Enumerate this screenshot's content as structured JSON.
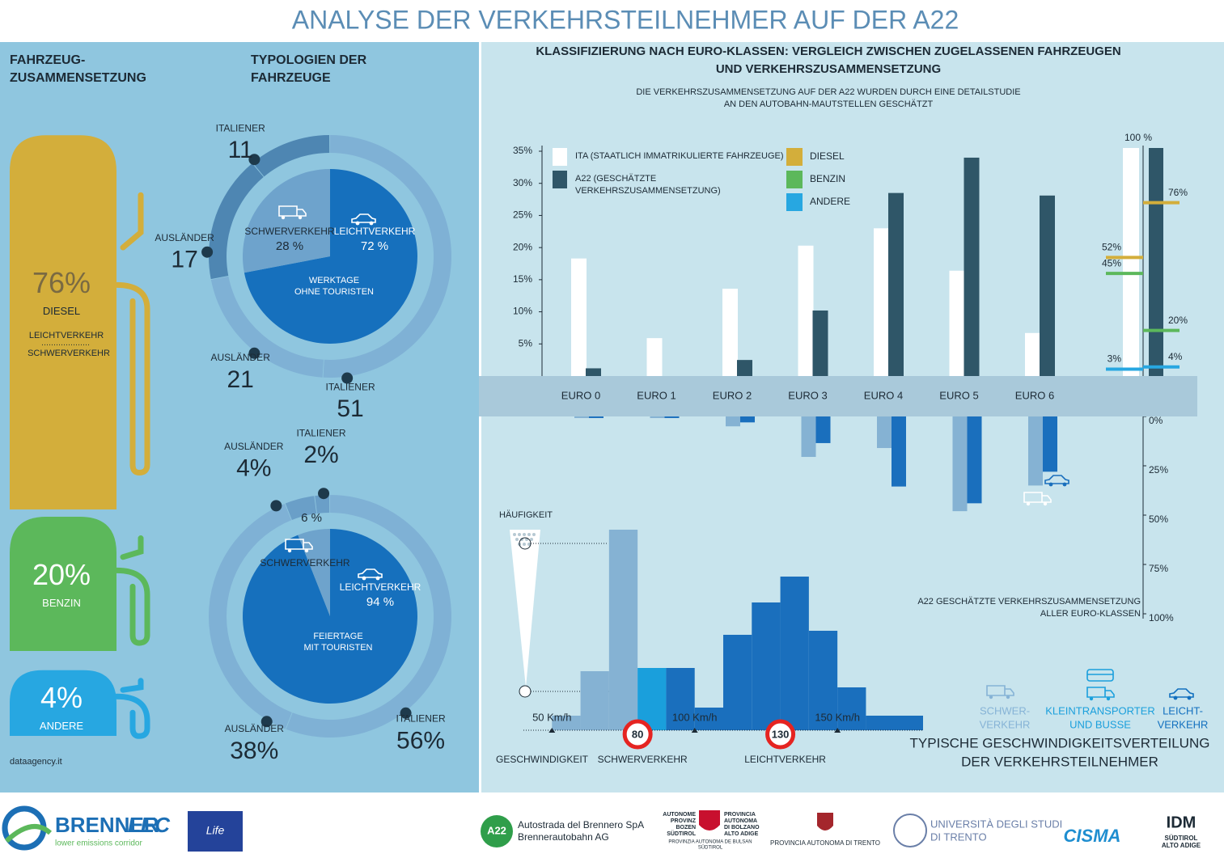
{
  "header": {
    "title": "ANALYSE DER VERKEHRSTEILNEHMER AUF DER A22"
  },
  "chart_data": [
    {
      "type": "tank",
      "title": [
        "FAHRZEUG-",
        "ZUSAMMENSETZUNG"
      ],
      "categories": [
        "DIESEL",
        "BENZIN",
        "ANDERE"
      ],
      "values": [
        76,
        20,
        4
      ],
      "value_labels": [
        "76%",
        "20%",
        "4%"
      ],
      "colors": [
        "#d3ae3b",
        "#5cb85b",
        "#27a7e1"
      ],
      "label_colors": [
        "#7a6a42",
        "#ffffff",
        "#ffffff"
      ],
      "sublabels": [
        "LEICHTVERKEHR",
        "SCHWERVERKEHR"
      ]
    },
    {
      "type": "donut",
      "title": [
        "TYPOLOGIEN DER",
        "FAHRZEUGE"
      ],
      "center_label": [
        "WERKTAGE",
        "OHNE TOURISTEN"
      ],
      "categories": [
        "LEICHTVERKEHR",
        "SCHWERVERKEHR"
      ],
      "values": [
        72,
        28
      ],
      "value_labels": [
        "72 %",
        "28 %"
      ],
      "colors": [
        "#1670bd",
        "#6ea3cc"
      ],
      "outer": {
        "categories": [
          "ITALIENER",
          "AUSLÄNDER",
          "AUSLÄNDER",
          "ITALIENER"
        ],
        "values": [
          51,
          21,
          17,
          11
        ],
        "colors": [
          "#7fb1d5",
          "#7fb1d5",
          "#4e86b2",
          "#4e86b2"
        ]
      }
    },
    {
      "type": "donut",
      "center_label": [
        "FEIERTAGE",
        "MIT TOURISTEN"
      ],
      "categories": [
        "LEICHTVERKEHR",
        "SCHWERVERKEHR"
      ],
      "values": [
        94,
        6
      ],
      "value_labels": [
        "94 %",
        "6 %"
      ],
      "colors": [
        "#1670bd",
        "#6ea3cc"
      ],
      "outer": {
        "categories": [
          "ITALIENER",
          "AUSLÄNDER",
          "AUSLÄNDER",
          "ITALIENER"
        ],
        "values": [
          56,
          38,
          4,
          2
        ],
        "value_labels": [
          "56%",
          "38%",
          "4%",
          "2%"
        ],
        "colors": [
          "#7fb1d5",
          "#7fb1d5",
          "#6a9fc8",
          "#6a9fc8"
        ]
      }
    },
    {
      "type": "bar",
      "title": [
        "KLASSIFIZIERUNG NACH EURO-KLASSEN: VERGLEICH ZWISCHEN ZUGELASSENEN FAHRZEUGEN",
        "UND VERKEHRSZUSAMMENSETZUNG"
      ],
      "subtitle": [
        "DIE VERKEHRSZUSAMMENSETZUNG AUF DER A22 WURDEN DURCH EINE DETAILSTUDIE",
        "AN DEN AUTOBAHN-MAUTSTELLEN GESCHÄTZT"
      ],
      "categories": [
        "EURO 0",
        "EURO 1",
        "EURO 2",
        "EURO 3",
        "EURO 4",
        "EURO 5",
        "EURO 6"
      ],
      "series": [
        {
          "name": "ITA (STAATLICH IMMATRIKULIERTE FAHRZEUGE)",
          "color": "#ffffff",
          "values": [
            18.3,
            5.9,
            13.6,
            20.3,
            23,
            16.4,
            6.7
          ]
        },
        {
          "name": "A22 (GESCHÄTZTE VERKEHRSZUSAMMENSETZUNG)",
          "color": "#2f5668",
          "values": [
            1.2,
            0,
            2.5,
            10.2,
            28.5,
            34,
            28.1
          ]
        },
        {
          "color": "#85b2d3",
          "axis": "y2",
          "values": [
            0.8,
            0.8,
            5,
            20.5,
            16,
            48,
            35
          ]
        },
        {
          "color": "#1a6fbd",
          "axis": "y2",
          "values": [
            0.8,
            0.8,
            3,
            13.5,
            35.5,
            44,
            28
          ]
        }
      ],
      "ylim": [
        0,
        35
      ],
      "yticks": [
        {
          "value": 5,
          "label": "5%"
        },
        {
          "value": 10,
          "label": "10%"
        },
        {
          "value": 15,
          "label": "15%"
        },
        {
          "value": 20,
          "label": "20%"
        },
        {
          "value": 25,
          "label": "25%"
        },
        {
          "value": 30,
          "label": "30%"
        },
        {
          "value": 35,
          "label": "35%"
        }
      ],
      "y2lim": [
        0,
        100
      ],
      "y2ticks": [
        {
          "value": 0,
          "label": "0%"
        },
        {
          "value": 25,
          "label": "25%"
        },
        {
          "value": 50,
          "label": "50%"
        },
        {
          "value": 75,
          "label": "75%"
        },
        {
          "value": 100,
          "label": "100%"
        }
      ]
    },
    {
      "type": "marker",
      "categories": [
        "DIESEL",
        "BENZIN",
        "ANDERE"
      ],
      "colors": [
        "#d3ae3b",
        "#5cb85b",
        "#27a7e1"
      ],
      "total": {
        "value": 100,
        "label": "100 %"
      },
      "series": [
        {
          "color": "#ffffff",
          "values": [
            52,
            45,
            3
          ],
          "value_labels": [
            "52%",
            "45%",
            "3%"
          ]
        },
        {
          "color": "#2f5668",
          "values": [
            76,
            20,
            4
          ],
          "value_labels": [
            "76%",
            "20%",
            "4%"
          ]
        }
      ],
      "ylim": [
        0,
        100
      ],
      "annotation": [
        "A22 GESCHÄTZTE VERKEHRSZUSAMMENSETZUNG",
        "ALLER EURO-KLASSEN"
      ]
    },
    {
      "type": "histogram",
      "title": [
        "TYPISCHE GESCHWINDIGKEITSVERTEILUNG",
        "DER VERKEHRSTEILNEHMER"
      ],
      "x_label": "GESCHWINDIGKEIT",
      "y_label": "HÄUFIGKEIT",
      "bins": [
        50,
        60,
        70,
        80,
        90,
        100,
        110,
        120,
        130,
        140,
        150,
        160,
        180
      ],
      "counts": [
        18,
        73,
        248,
        77,
        77,
        28,
        118,
        158,
        190,
        123,
        53,
        18
      ],
      "colors": [
        "#85b2d3",
        "#85b2d3",
        "#85b2d3",
        "#1a9fdc",
        "#1a6fbd",
        "#1a6fbd",
        "#1a6fbd",
        "#1a6fbd",
        "#1a6fbd",
        "#1a6fbd",
        "#1a6fbd",
        "#1a6fbd"
      ],
      "xlim": [
        40,
        180
      ],
      "ylim": [
        0,
        260
      ],
      "xticks": [
        {
          "value": 50,
          "label": "50 Km/h"
        },
        {
          "value": 100,
          "label": "100  Km/h"
        },
        {
          "value": 150,
          "label": "150  Km/h"
        }
      ],
      "speed_limits": [
        {
          "value": 80,
          "label": "80",
          "name": "SCHWERVERKEHR"
        },
        {
          "value": 130,
          "label": "130",
          "name": "LEICHTVERKEHR"
        }
      ],
      "legend": [
        {
          "label": [
            "SCHWER-",
            "VERKEHR"
          ],
          "color": "#86b3d6"
        },
        {
          "label": [
            "KLEINTRANSPORTER",
            "UND BUSSE"
          ],
          "color": "#1a9fdc"
        },
        {
          "label": [
            "LEICHT-",
            "VERKEHR"
          ],
          "color": "#1270bf"
        }
      ]
    }
  ],
  "footer": {
    "source": "dataagency.it",
    "brenner": "BRENNER",
    "lec": "LEC",
    "corridor": "lower emissions corridor",
    "life": "Life",
    "a22": "A22",
    "a22_name": [
      "Autostrada del Brennero SpA",
      "Brennerautobahn AG"
    ],
    "bozen": [
      "AUTONOME",
      "PROVINZ",
      "BOZEN",
      "SÜDTIROL"
    ],
    "bolzano": [
      "PROVINCIA",
      "AUTONOMA",
      "DI BOLZANO",
      "ALTO ADIGE"
    ],
    "ladin": [
      "PROVINZIA AUTONOMA DE BULSAN",
      "SÜDTIROL"
    ],
    "trento": "PROVINCIA AUTONOMA DI TRENTO",
    "uni": [
      "UNIVERSITÀ DEGLI STUDI",
      "DI TRENTO"
    ],
    "cisma": "CISMA",
    "idm": "IDM",
    "idm_sub": [
      "SÜDTIROL",
      "ALTO ADIGE"
    ]
  }
}
